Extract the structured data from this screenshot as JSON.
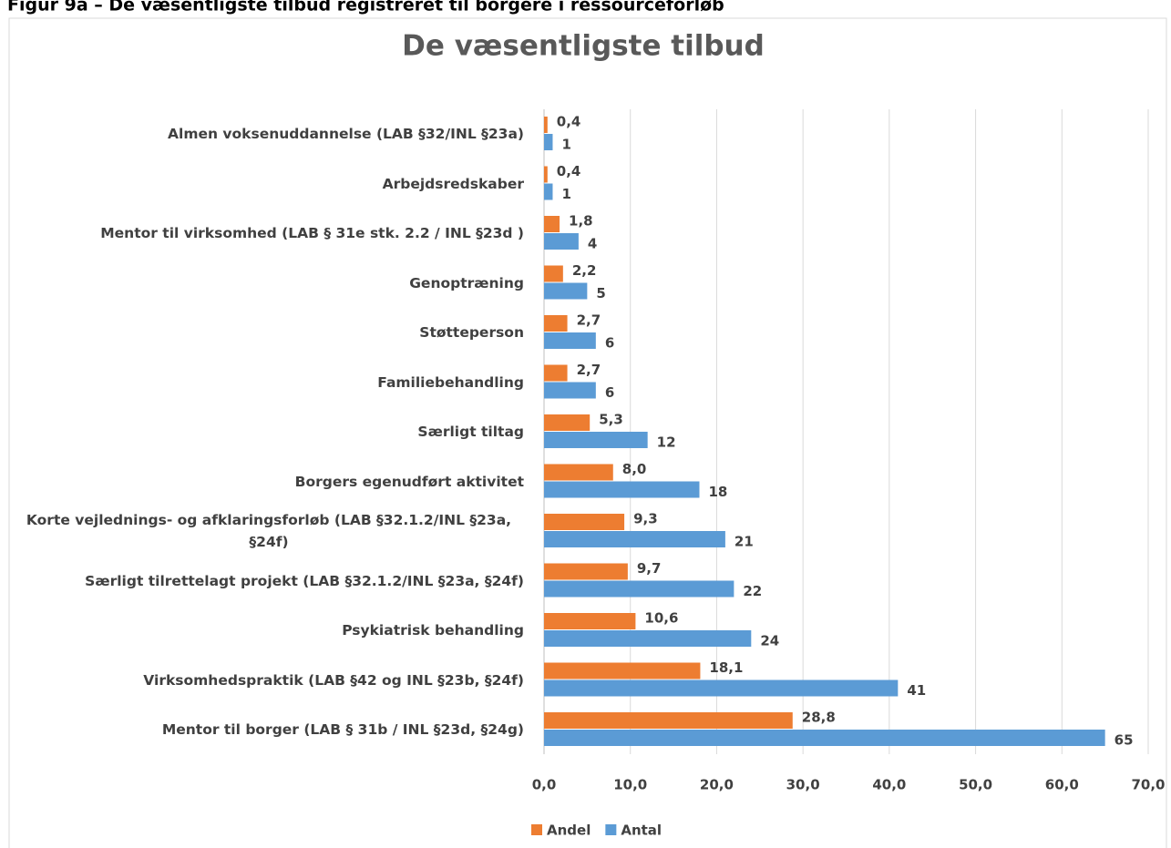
{
  "figure_heading": "Figur 9a – De væsentligste tilbud registreret til borgere i ressourceforløb",
  "chart_data": {
    "type": "bar",
    "orientation": "horizontal",
    "title": "De væsentligste tilbud",
    "categories": [
      "Almen voksenuddannelse (LAB §32/INL §23a)",
      "Arbejdsredskaber",
      "Mentor til virksomhed (LAB § 31e stk. 2.2 / INL §23d )",
      "Genoptræning",
      "Støtteperson",
      "Familiebehandling",
      "Særligt tiltag",
      "Borgers egenudført aktivitet",
      "Korte vejlednings- og afklaringsforløb (LAB §32.1.2/INL §23a, §24f)",
      "Særligt tilrettelagt projekt (LAB §32.1.2/INL §23a, §24f)",
      "Psykiatrisk behandling",
      "Virksomhedspraktik (LAB §42 og INL §23b, §24f)",
      "Mentor til borger (LAB § 31b / INL §23d, §24g)"
    ],
    "series": [
      {
        "name": "Andel",
        "color": "#ed7d31",
        "values": [
          0.4,
          0.4,
          1.8,
          2.2,
          2.7,
          2.7,
          5.3,
          8.0,
          9.3,
          9.7,
          10.6,
          18.1,
          28.8
        ],
        "value_labels": [
          "0,4",
          "0,4",
          "1,8",
          "2,2",
          "2,7",
          "2,7",
          "5,3",
          "8,0",
          "9,3",
          "9,7",
          "10,6",
          "18,1",
          "28,8"
        ]
      },
      {
        "name": "Antal",
        "color": "#5b9bd5",
        "values": [
          1,
          1,
          4,
          5,
          6,
          6,
          12,
          18,
          21,
          22,
          24,
          41,
          65
        ]
      }
    ],
    "xlim": [
      0,
      70
    ],
    "xticks": [
      {
        "value": 0,
        "label": "0,0"
      },
      {
        "value": 10,
        "label": "10,0"
      },
      {
        "value": 20,
        "label": "20,0"
      },
      {
        "value": 30,
        "label": "30,0"
      },
      {
        "value": 40,
        "label": "40,0"
      },
      {
        "value": 50,
        "label": "50,0"
      },
      {
        "value": 60,
        "label": "60,0"
      },
      {
        "value": 70,
        "label": "70,0"
      }
    ],
    "grid": true,
    "legend": "bottom"
  }
}
